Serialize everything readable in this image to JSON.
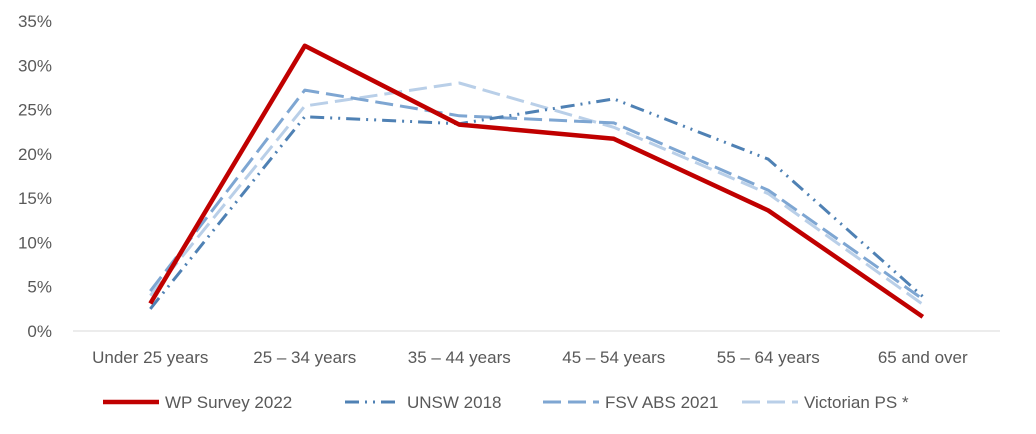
{
  "chart_data": {
    "type": "line",
    "categories": [
      "Under 25 years",
      "25 – 34 years",
      "35 – 44 years",
      "45 – 54 years",
      "55 – 64 years",
      "65 and over"
    ],
    "ylim": [
      0,
      35
    ],
    "yticks": [
      "0%",
      "5%",
      "10%",
      "15%",
      "20%",
      "25%",
      "30%",
      "35%"
    ],
    "grid": false,
    "legend_position": "bottom",
    "series": [
      {
        "name": "WP Survey 2022",
        "values": [
          3.1,
          32.2,
          23.3,
          21.7,
          13.6,
          1.6
        ],
        "color": "#C00000",
        "style": "solid"
      },
      {
        "name": "UNSW 2018",
        "values": [
          2.5,
          24.2,
          23.4,
          26.2,
          19.4,
          3.9
        ],
        "color": "#4F81B4",
        "style": "dash-dot-dot"
      },
      {
        "name": "FSV ABS 2021",
        "values": [
          4.5,
          27.2,
          24.3,
          23.5,
          15.9,
          3.6
        ],
        "color": "#7EA6D2",
        "style": "long-dash"
      },
      {
        "name": "Victorian PS *",
        "values": [
          4.0,
          25.4,
          28.0,
          23.0,
          15.5,
          3.0
        ],
        "color": "#B9CFE8",
        "style": "long-dash"
      }
    ]
  }
}
